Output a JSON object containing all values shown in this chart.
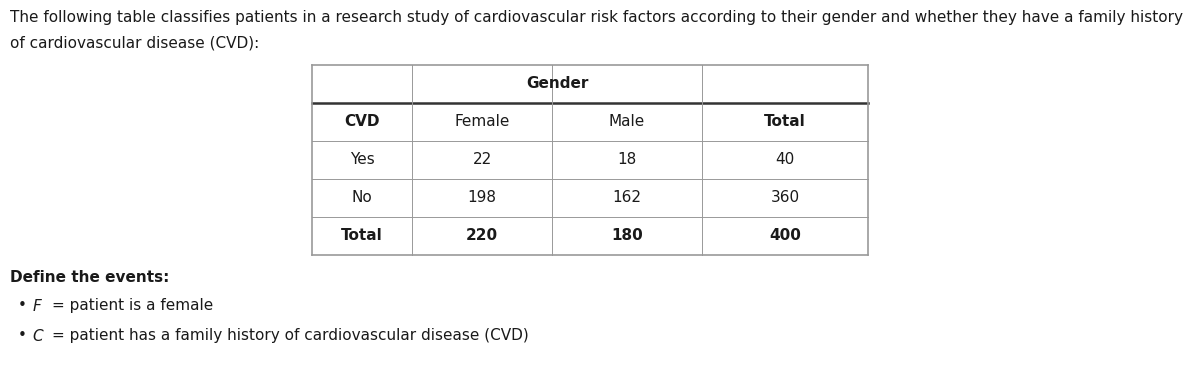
{
  "intro_line1": "The following table classifies patients in a research study of cardiovascular risk factors according to their gender and whether they have a family history",
  "intro_line2": "of cardiovascular disease (CVD):",
  "gender_label": "Gender",
  "col_headers": [
    "CVD",
    "Female",
    "Male",
    "Total"
  ],
  "col_headers_bold": [
    true,
    false,
    false,
    true
  ],
  "rows": [
    [
      "Yes",
      "22",
      "18",
      "40"
    ],
    [
      "No",
      "198",
      "162",
      "360"
    ],
    [
      "Total",
      "220",
      "180",
      "400"
    ]
  ],
  "rows_bold": [
    [
      false,
      false,
      false,
      false
    ],
    [
      false,
      false,
      false,
      false
    ],
    [
      true,
      true,
      true,
      true
    ]
  ],
  "define_label": "Define the events:",
  "bullet_F_math": "$F$",
  "bullet_F_text": "= patient is a female",
  "bullet_C_math": "$C$",
  "bullet_C_text": "= patient has a family history of cardiovascular disease (CVD)",
  "bg_color": "#ffffff",
  "text_color": "#1a1a1a",
  "line_color": "#999999",
  "line_color_thick": "#333333",
  "fs_body": 11.0,
  "fs_table": 11.0,
  "lw_outer": 1.2,
  "lw_inner": 0.7,
  "lw_divider": 1.8
}
